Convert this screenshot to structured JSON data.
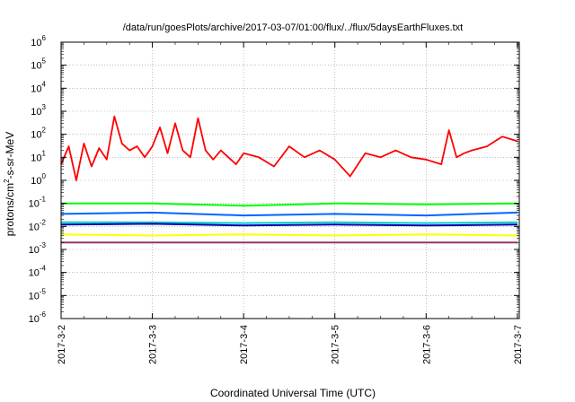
{
  "chart_data": {
    "type": "line",
    "title": "/data/run/goesPlots/archive/2017-03-07/01:00/flux/../flux/5daysEarthFluxes.txt",
    "xlabel": "Coordinated Universal Time (UTC)",
    "ylabel": {
      "base": "protons/cm",
      "sup": "2",
      "rest": "-s-sr-MeV"
    },
    "x_scale": "time",
    "y_scale": "log",
    "xlim": [
      "2017-03-02",
      "2017-03-07 00:30"
    ],
    "ylim": [
      1e-06,
      1000000.0
    ],
    "grid": true,
    "legend": "none",
    "x_ticks": [
      "2017-3-2",
      "2017-3-3",
      "2017-3-4",
      "2017-3-5",
      "2017-3-6",
      "2017-3-7"
    ],
    "y_ticks": [
      {
        "base": "10",
        "exp": "6"
      },
      {
        "base": "10",
        "exp": "5"
      },
      {
        "base": "10",
        "exp": "4"
      },
      {
        "base": "10",
        "exp": "3"
      },
      {
        "base": "10",
        "exp": "2"
      },
      {
        "base": "10",
        "exp": "1"
      },
      {
        "base": "10",
        "exp": "0"
      },
      {
        "base": "10",
        "exp": "-1"
      },
      {
        "base": "10",
        "exp": "-2"
      },
      {
        "base": "10",
        "exp": "-3"
      },
      {
        "base": "10",
        "exp": "-4"
      },
      {
        "base": "10",
        "exp": "-5"
      },
      {
        "base": "10",
        "exp": "-6"
      }
    ],
    "series": [
      {
        "color": "#ff0000",
        "x": [
          "2017-03-02 00:00",
          "2017-03-02 02:00",
          "2017-03-02 04:00",
          "2017-03-02 06:00",
          "2017-03-02 08:00",
          "2017-03-02 10:00",
          "2017-03-02 12:00",
          "2017-03-02 14:00",
          "2017-03-02 16:00",
          "2017-03-02 18:00",
          "2017-03-02 20:00",
          "2017-03-02 22:00",
          "2017-03-03 00:00",
          "2017-03-03 02:00",
          "2017-03-03 04:00",
          "2017-03-03 06:00",
          "2017-03-03 08:00",
          "2017-03-03 10:00",
          "2017-03-03 12:00",
          "2017-03-03 14:00",
          "2017-03-03 16:00",
          "2017-03-03 18:00",
          "2017-03-03 20:00",
          "2017-03-03 22:00",
          "2017-03-04 00:00",
          "2017-03-04 04:00",
          "2017-03-04 08:00",
          "2017-03-04 12:00",
          "2017-03-04 16:00",
          "2017-03-04 20:00",
          "2017-03-05 00:00",
          "2017-03-05 04:00",
          "2017-03-05 08:00",
          "2017-03-05 12:00",
          "2017-03-05 16:00",
          "2017-03-05 20:00",
          "2017-03-06 00:00",
          "2017-03-06 04:00",
          "2017-03-06 06:00",
          "2017-03-06 08:00",
          "2017-03-06 10:00",
          "2017-03-06 12:00",
          "2017-03-06 16:00",
          "2017-03-06 20:00",
          "2017-03-07 00:00"
        ],
        "values": [
          5,
          30,
          1,
          40,
          4,
          25,
          8,
          600,
          40,
          20,
          30,
          10,
          30,
          200,
          15,
          300,
          20,
          10,
          500,
          20,
          8,
          20,
          10,
          5,
          15,
          10,
          4,
          30,
          10,
          20,
          8,
          1.5,
          15,
          10,
          20,
          10,
          8,
          5,
          150,
          10,
          15,
          20,
          30,
          80,
          50
        ]
      },
      {
        "color": "#00ff00",
        "x": [
          "2017-03-02",
          "2017-03-03",
          "2017-03-04",
          "2017-03-05",
          "2017-03-06",
          "2017-03-07"
        ],
        "values": [
          0.1,
          0.1,
          0.08,
          0.1,
          0.09,
          0.1
        ]
      },
      {
        "color": "#0066ff",
        "x": [
          "2017-03-02",
          "2017-03-03",
          "2017-03-04",
          "2017-03-05",
          "2017-03-06",
          "2017-03-07"
        ],
        "values": [
          0.035,
          0.04,
          0.03,
          0.035,
          0.03,
          0.04
        ]
      },
      {
        "color": "#00cccc",
        "x": [
          "2017-03-02",
          "2017-03-03",
          "2017-03-04",
          "2017-03-05",
          "2017-03-06",
          "2017-03-07"
        ],
        "values": [
          0.015,
          0.015,
          0.014,
          0.015,
          0.014,
          0.015
        ]
      },
      {
        "color": "#0000aa",
        "x": [
          "2017-03-02",
          "2017-03-03",
          "2017-03-04",
          "2017-03-05",
          "2017-03-06",
          "2017-03-07"
        ],
        "values": [
          0.012,
          0.013,
          0.011,
          0.012,
          0.011,
          0.012
        ]
      },
      {
        "color": "#ffff00",
        "x": [
          "2017-03-02",
          "2017-03-03",
          "2017-03-04",
          "2017-03-05",
          "2017-03-06",
          "2017-03-07"
        ],
        "values": [
          0.0045,
          0.004,
          0.0045,
          0.004,
          0.0045,
          0.004
        ]
      },
      {
        "color": "#993366",
        "x": [
          "2017-03-02",
          "2017-03-03",
          "2017-03-04",
          "2017-03-05",
          "2017-03-06",
          "2017-03-07"
        ],
        "values": [
          0.002,
          0.002,
          0.002,
          0.002,
          0.002,
          0.002
        ]
      }
    ]
  }
}
